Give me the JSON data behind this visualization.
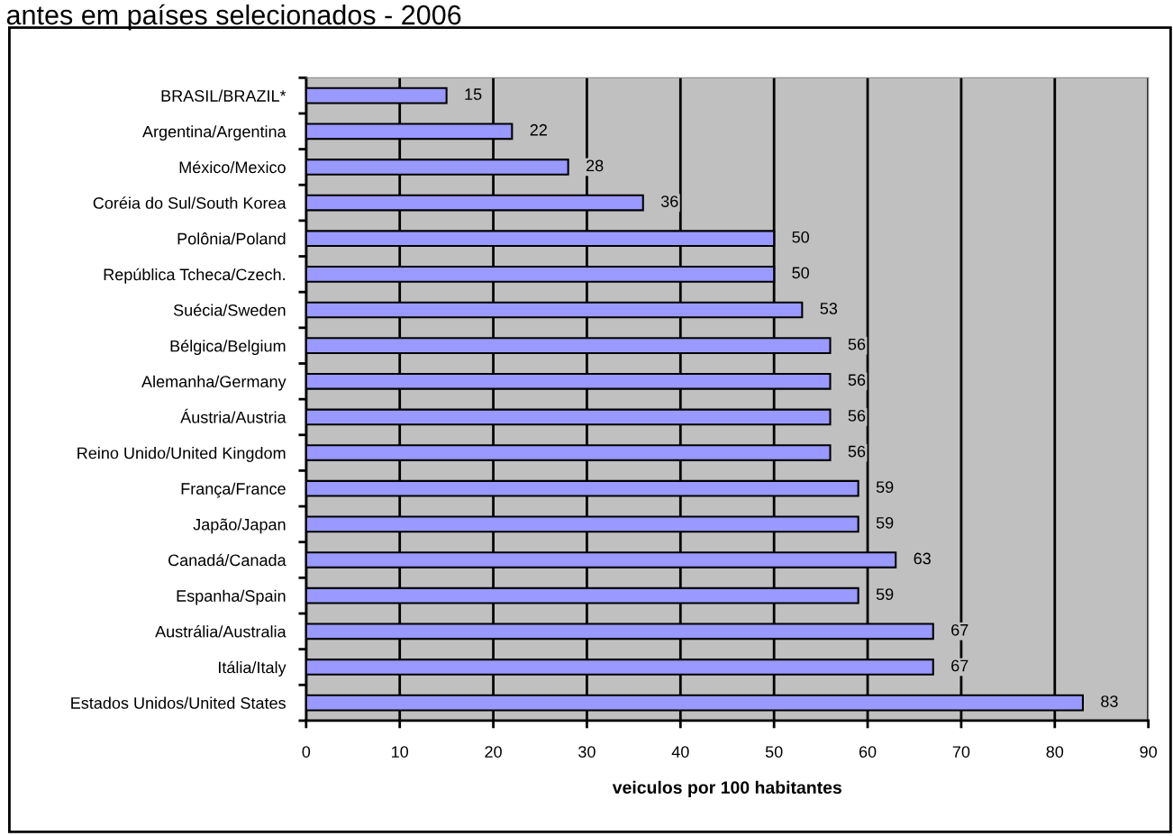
{
  "chart_data": {
    "type": "bar",
    "orientation": "horizontal",
    "title": "antes em países selecionados - 2006",
    "xlabel": "veiculos por 100 habitantes",
    "categories": [
      "BRASIL/BRAZIL*",
      "Argentina/Argentina",
      "México/Mexico",
      "Coréia do Sul/South Korea",
      "Polônia/Poland",
      "República Tcheca/Czech.",
      "Suécia/Sweden",
      "Bélgica/Belgium",
      "Alemanha/Germany",
      "Áustria/Austria",
      "Reino Unido/United Kingdom",
      "França/France",
      "Japão/Japan",
      "Canadá/Canada",
      "Espanha/Spain",
      "Austrália/Australia",
      "Itália/Italy",
      "Estados Unidos/United States"
    ],
    "values": [
      15,
      22,
      28,
      36,
      50,
      50,
      53,
      56,
      56,
      56,
      56,
      59,
      59,
      63,
      59,
      67,
      67,
      83
    ],
    "color": "#9999ff",
    "data_labels": true,
    "xlim": [
      0,
      90
    ],
    "xticks": [
      0,
      10,
      20,
      30,
      40,
      50,
      60,
      70,
      80,
      90
    ],
    "grid": "x"
  }
}
